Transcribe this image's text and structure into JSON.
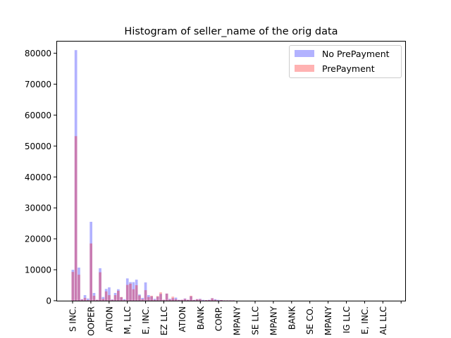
{
  "chart_data": {
    "type": "bar",
    "title": "Histogram of seller_name of the orig data",
    "xlabel": "",
    "ylabel": "",
    "ylim": [
      0,
      84000
    ],
    "yticks": [
      0,
      10000,
      20000,
      30000,
      40000,
      50000,
      60000,
      70000,
      80000
    ],
    "ytick_labels": [
      "0",
      "10000",
      "20000",
      "30000",
      "40000",
      "50000",
      "60000",
      "70000",
      "80000"
    ],
    "xtick_labels": [
      "S INC.",
      "OOPER",
      "ATION",
      "M, LLC",
      "E, INC.",
      "EZ LLC",
      "ATION",
      "BANK",
      "CORP.",
      "MPANY",
      "SE LLC",
      "MPANY",
      "BANK",
      "SE CO.",
      "MPANY",
      "IG LLC",
      "E, INC.",
      "AL LLC",
      ""
    ],
    "legend_position": "upper right",
    "colors": {
      "series_0": "#0000ff",
      "series_1": "#ff0000"
    },
    "series": [
      {
        "name": "No PrePayment",
        "values": [
          10000,
          81000,
          10700,
          500,
          1800,
          700,
          25500,
          2500,
          300,
          10500,
          1200,
          3800,
          4300,
          400,
          2500,
          3700,
          1100,
          500,
          7200,
          6000,
          6000,
          6800,
          2000,
          900,
          5900,
          1800,
          1400,
          600,
          1300,
          2200,
          300,
          2300,
          600,
          800,
          1000,
          300,
          300,
          700,
          300,
          1400,
          300,
          500,
          600,
          300,
          200,
          300,
          800,
          500,
          300,
          200,
          100,
          100,
          100,
          100
        ]
      },
      {
        "name": "PrePayment",
        "values": [
          9300,
          53200,
          8400,
          400,
          900,
          200,
          18500,
          1600,
          300,
          9200,
          600,
          3000,
          1800,
          300,
          1800,
          3200,
          1200,
          200,
          5100,
          5500,
          3700,
          5000,
          1700,
          500,
          3400,
          1200,
          1600,
          300,
          1500,
          2700,
          300,
          2300,
          400,
          1300,
          500,
          200,
          300,
          600,
          300,
          1600,
          200,
          500,
          500,
          100,
          200,
          200,
          800,
          300,
          100,
          200,
          100,
          100,
          100,
          100
        ]
      }
    ]
  }
}
